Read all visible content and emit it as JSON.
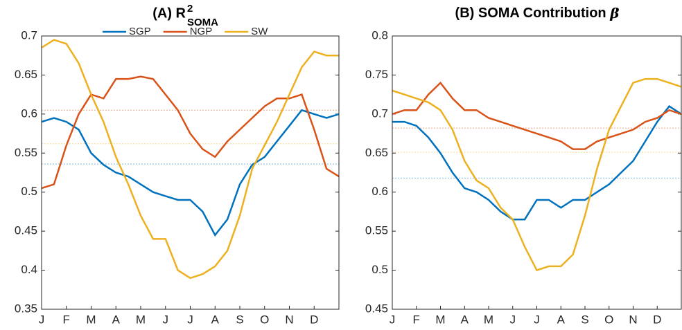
{
  "chart_data": [
    {
      "type": "line",
      "title": "(A) R",
      "title_sup": "2",
      "title_sub": "SOMA",
      "categories": [
        "J",
        null,
        "F",
        null,
        "M",
        null,
        "A",
        null,
        "M",
        null,
        "J",
        null,
        "J",
        null,
        "A",
        null,
        "S",
        null,
        "O",
        null,
        "N",
        null,
        "D",
        null,
        null
      ],
      "ylim": [
        0.35,
        0.7
      ],
      "yticks": [
        0.35,
        0.4,
        0.45,
        0.5,
        0.55,
        0.6,
        0.65,
        0.7
      ],
      "legend": "top",
      "series": [
        {
          "name": "SGP",
          "color": "#0072BD",
          "mean": 0.536,
          "values": [
            0.59,
            0.595,
            0.59,
            0.58,
            0.55,
            0.535,
            0.525,
            0.52,
            0.51,
            0.5,
            0.495,
            0.49,
            0.49,
            0.475,
            0.445,
            0.465,
            0.51,
            0.535,
            0.545,
            0.565,
            0.585,
            0.605,
            0.6,
            0.595,
            0.6
          ]
        },
        {
          "name": "NGP",
          "color": "#D95319",
          "mean": 0.605,
          "values": [
            0.505,
            0.51,
            0.56,
            0.6,
            0.625,
            0.62,
            0.645,
            0.645,
            0.648,
            0.645,
            0.625,
            0.605,
            0.575,
            0.555,
            0.545,
            0.565,
            0.58,
            0.595,
            0.61,
            0.62,
            0.62,
            0.625,
            0.58,
            0.53,
            0.52
          ]
        },
        {
          "name": "SW",
          "color": "#EDB120",
          "mean": 0.562,
          "values": [
            0.685,
            0.695,
            0.69,
            0.665,
            0.625,
            0.59,
            0.545,
            0.51,
            0.47,
            0.44,
            0.44,
            0.4,
            0.39,
            0.395,
            0.405,
            0.425,
            0.47,
            0.53,
            0.56,
            0.59,
            0.625,
            0.66,
            0.68,
            0.675,
            0.675
          ]
        }
      ]
    },
    {
      "type": "line",
      "title": "(B) SOMA Contribution ",
      "title_symbol": "β",
      "categories": [
        "J",
        null,
        "F",
        null,
        "M",
        null,
        "A",
        null,
        "M",
        null,
        "J",
        null,
        "J",
        null,
        "A",
        null,
        "S",
        null,
        "O",
        null,
        "N",
        null,
        "D",
        null,
        null
      ],
      "ylim": [
        0.45,
        0.8
      ],
      "yticks": [
        0.45,
        0.5,
        0.55,
        0.6,
        0.65,
        0.7,
        0.75,
        0.8
      ],
      "series": [
        {
          "color": "#0072BD",
          "mean": 0.618,
          "values": [
            0.69,
            0.69,
            0.685,
            0.67,
            0.65,
            0.625,
            0.605,
            0.6,
            0.59,
            0.575,
            0.565,
            0.565,
            0.59,
            0.59,
            0.58,
            0.59,
            0.59,
            0.6,
            0.61,
            0.625,
            0.64,
            0.665,
            0.69,
            0.71,
            0.7
          ]
        },
        {
          "color": "#D95319",
          "mean": 0.682,
          "values": [
            0.7,
            0.705,
            0.705,
            0.725,
            0.74,
            0.72,
            0.705,
            0.705,
            0.695,
            0.69,
            0.685,
            0.68,
            0.675,
            0.67,
            0.665,
            0.655,
            0.655,
            0.665,
            0.67,
            0.675,
            0.68,
            0.69,
            0.695,
            0.705,
            0.7
          ]
        },
        {
          "color": "#EDB120",
          "mean": 0.651,
          "values": [
            0.73,
            0.725,
            0.72,
            0.715,
            0.705,
            0.68,
            0.64,
            0.615,
            0.605,
            0.58,
            0.565,
            0.53,
            0.5,
            0.505,
            0.505,
            0.52,
            0.57,
            0.63,
            0.68,
            0.71,
            0.74,
            0.745,
            0.745,
            0.74,
            0.735
          ]
        }
      ]
    }
  ]
}
